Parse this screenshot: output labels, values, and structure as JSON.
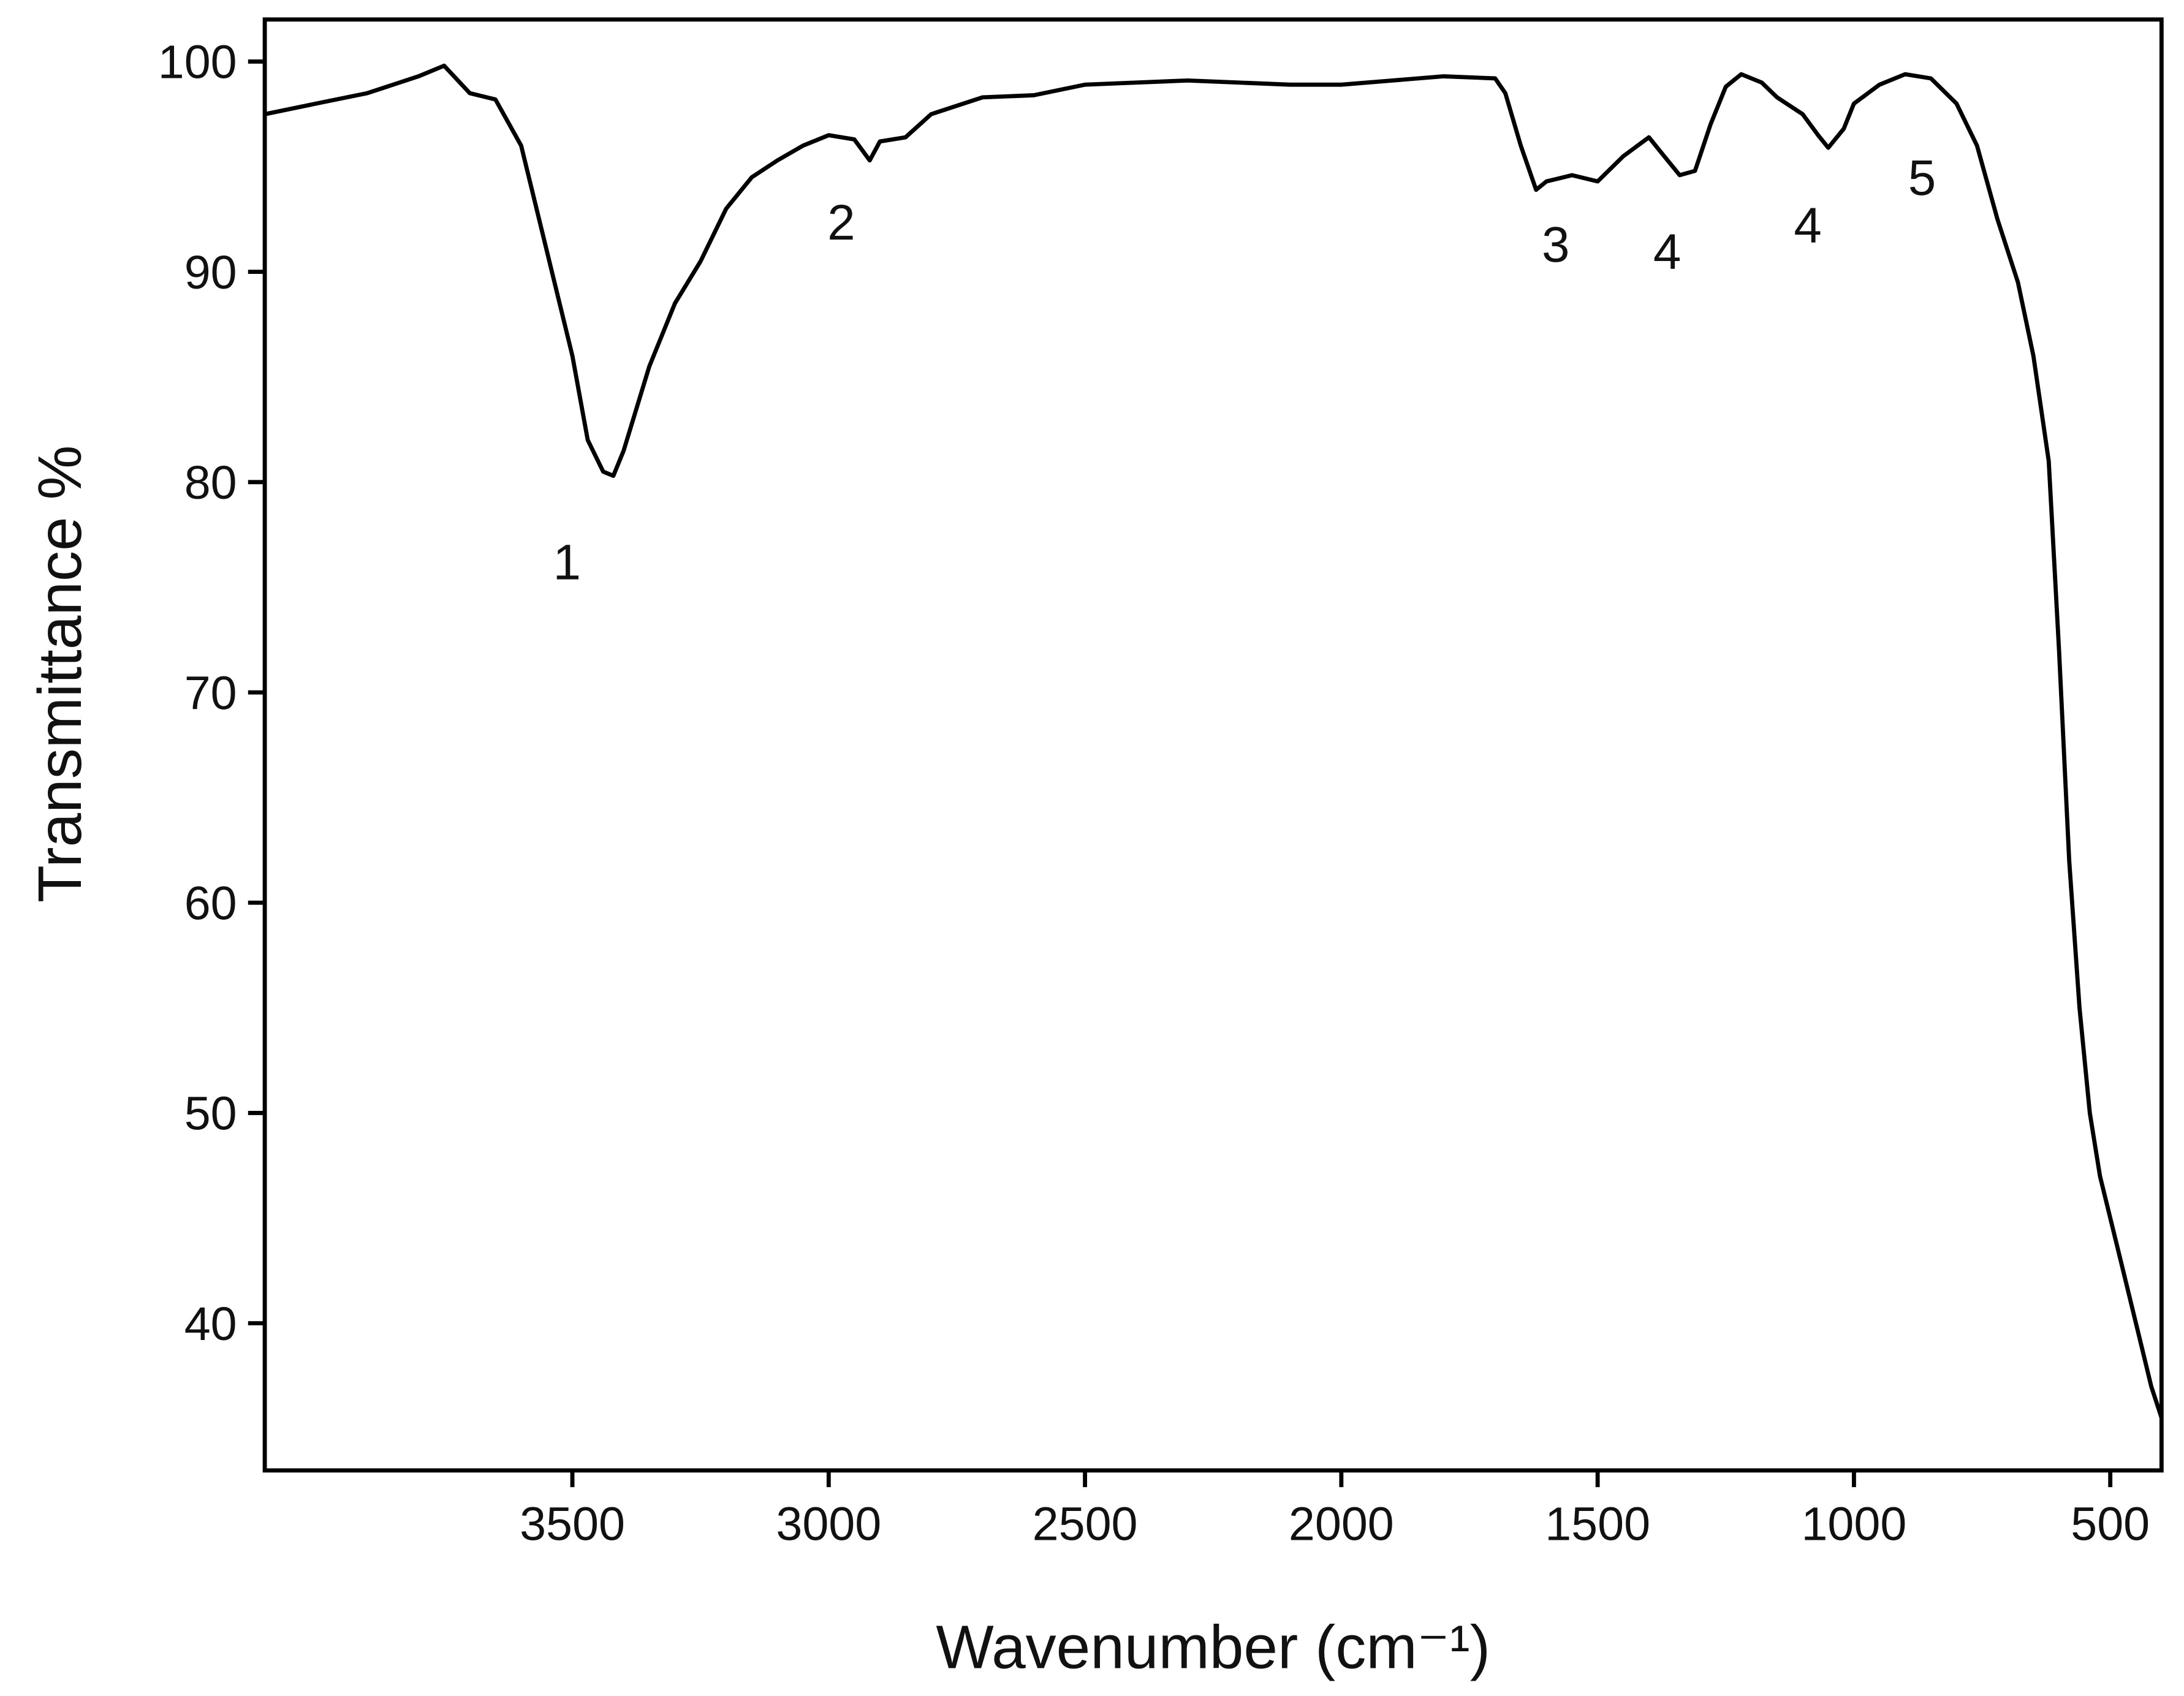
{
  "chart_data": {
    "type": "line",
    "xlabel": "Wavenumber (cm⁻¹)",
    "ylabel": "Transmittance %",
    "x": [
      4100,
      4000,
      3900,
      3800,
      3750,
      3700,
      3650,
      3600,
      3550,
      3500,
      3470,
      3440,
      3420,
      3400,
      3350,
      3300,
      3250,
      3200,
      3150,
      3100,
      3050,
      3000,
      2950,
      2920,
      2900,
      2850,
      2800,
      2700,
      2600,
      2500,
      2400,
      2300,
      2200,
      2100,
      2000,
      1900,
      1800,
      1700,
      1680,
      1650,
      1620,
      1600,
      1550,
      1500,
      1450,
      1400,
      1370,
      1340,
      1310,
      1280,
      1250,
      1220,
      1180,
      1150,
      1100,
      1070,
      1050,
      1020,
      1000,
      950,
      900,
      850,
      800,
      760,
      720,
      680,
      650,
      620,
      600,
      580,
      560,
      540,
      520,
      480,
      440,
      420,
      400
    ],
    "values": [
      97.5,
      98,
      98.5,
      99.3,
      99.8,
      98.5,
      98.2,
      96,
      91,
      86,
      82,
      80.5,
      80.3,
      81.5,
      85.5,
      88.5,
      90.5,
      93,
      94.5,
      95.3,
      96,
      96.5,
      96.3,
      95.3,
      96.2,
      96.4,
      97.5,
      98.3,
      98.4,
      98.9,
      99,
      99.1,
      99,
      98.9,
      98.9,
      99.1,
      99.3,
      99.2,
      98.5,
      96,
      93.9,
      94.3,
      94.6,
      94.3,
      95.5,
      96.4,
      95.5,
      94.6,
      94.8,
      97,
      98.8,
      99.4,
      99,
      98.3,
      97.5,
      96.5,
      95.9,
      96.8,
      98,
      98.9,
      99.4,
      99.2,
      98,
      96,
      92.5,
      89.5,
      86,
      81,
      72,
      62,
      55,
      50,
      47,
      43,
      39,
      37,
      35.5
    ],
    "color": "#000000",
    "annotations": [
      "1",
      "2",
      "3",
      "4",
      "4",
      "5"
    ],
    "xlim": [
      4100,
      400
    ],
    "xticks": [
      3500,
      3000,
      2500,
      2000,
      1500,
      1000,
      500
    ],
    "ylim": [
      33,
      102
    ],
    "yticks": [
      40,
      50,
      60,
      70,
      80,
      90,
      100
    ],
    "grid": false
  }
}
